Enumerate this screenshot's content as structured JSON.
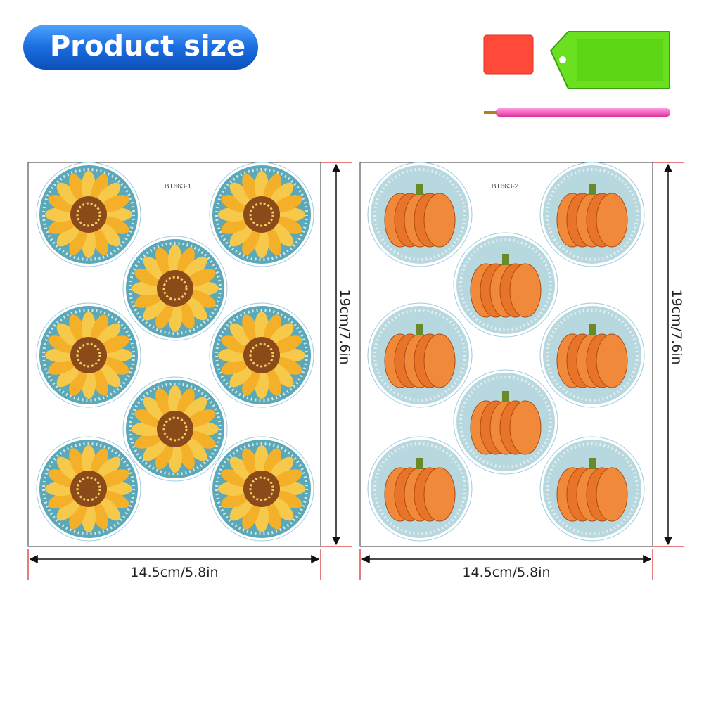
{
  "header": {
    "title": "Product size"
  },
  "sheets": [
    {
      "code": "BT663-1",
      "width": "14.5cm/5.8in",
      "height": "19cm/7.6in"
    },
    {
      "code": "BT663-2",
      "width": "14.5cm/5.8in",
      "height": "19cm/7.6in"
    }
  ]
}
